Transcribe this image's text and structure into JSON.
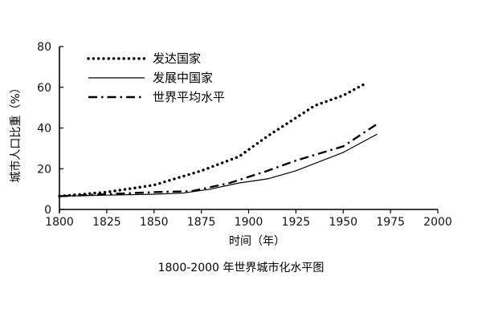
{
  "chart_data": {
    "type": "line",
    "title": "1800-2000 年世界城市化水平图",
    "xlabel": "时间（年）",
    "ylabel": "城市人口比重（%）",
    "xlim": [
      1800,
      2000
    ],
    "ylim": [
      0,
      80
    ],
    "x_ticks": [
      "1800",
      "1825",
      "1850",
      "1875",
      "1900",
      "1925",
      "1950",
      "1975",
      "2000"
    ],
    "y_ticks": [
      "0",
      "20",
      "40",
      "60",
      "80"
    ],
    "grid": false,
    "legend_position": "top-left",
    "series": [
      {
        "name": "发达国家",
        "style": "dotted",
        "points": [
          [
            1800,
            6.5
          ],
          [
            1825,
            8.5
          ],
          [
            1850,
            12
          ],
          [
            1875,
            19
          ],
          [
            1895,
            26
          ],
          [
            1910,
            36
          ],
          [
            1925,
            45
          ],
          [
            1935,
            51
          ],
          [
            1950,
            56
          ],
          [
            1962,
            62
          ]
        ]
      },
      {
        "name": "发展中国家",
        "style": "solid",
        "points": [
          [
            1800,
            6.5
          ],
          [
            1825,
            7
          ],
          [
            1850,
            7.5
          ],
          [
            1865,
            8
          ],
          [
            1880,
            10
          ],
          [
            1895,
            13
          ],
          [
            1910,
            15
          ],
          [
            1925,
            19
          ],
          [
            1950,
            28
          ],
          [
            1968,
            37
          ]
        ]
      },
      {
        "name": "世界平均水平",
        "style": "dash-dot",
        "points": [
          [
            1800,
            6.5
          ],
          [
            1825,
            7.5
          ],
          [
            1850,
            8.5
          ],
          [
            1870,
            9
          ],
          [
            1890,
            13
          ],
          [
            1910,
            19
          ],
          [
            1925,
            24
          ],
          [
            1950,
            31
          ],
          [
            1968,
            42
          ]
        ]
      }
    ]
  }
}
